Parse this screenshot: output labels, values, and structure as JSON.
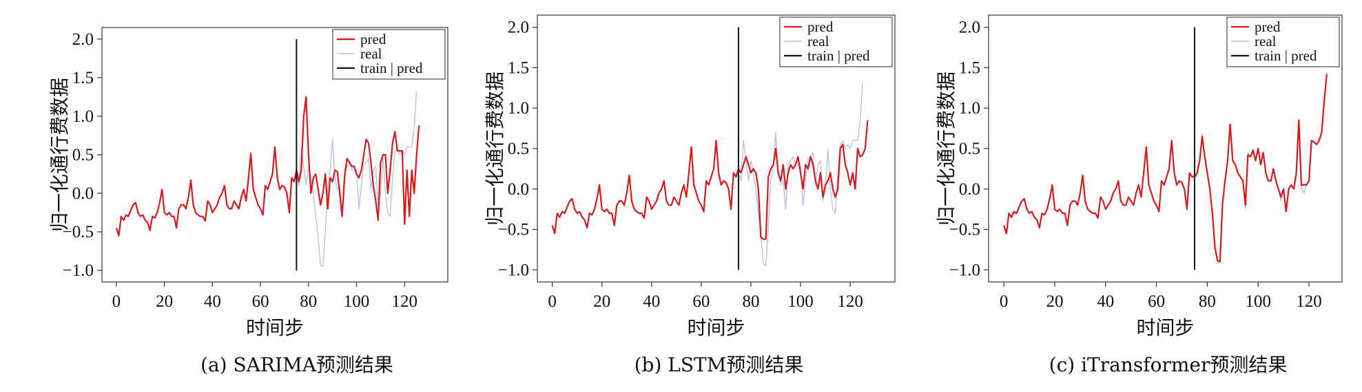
{
  "shared": {
    "ylabel": "归一化通行费数据",
    "xlabel": "时间步",
    "xticks": [
      0,
      20,
      40,
      60,
      80,
      100,
      120
    ],
    "yticks": [
      "2.0",
      "1.5",
      "1.0",
      "0.5",
      "0.0",
      "−0.5",
      "−1.0"
    ],
    "legend": [
      "pred",
      "real",
      "train | pred"
    ],
    "colors": {
      "pred": "#d7191c",
      "real": "#b9bfe6",
      "split": "#111111",
      "axis": "#333333"
    }
  },
  "chart_data": [
    {
      "type": "line",
      "caption": "(a)  SARIMA预测结果",
      "xlim": [
        -6,
        138
      ],
      "ylim": [
        -1.15,
        2.15
      ],
      "split_x": 75,
      "series": [
        {
          "name": "real",
          "x_start": 0,
          "values": [
            -0.45,
            -0.55,
            -0.3,
            -0.35,
            -0.28,
            -0.3,
            -0.22,
            -0.15,
            -0.12,
            -0.25,
            -0.3,
            -0.28,
            -0.35,
            -0.38,
            -0.48,
            -0.3,
            -0.32,
            -0.25,
            -0.12,
            0.05,
            -0.25,
            -0.28,
            -0.25,
            -0.3,
            -0.3,
            -0.45,
            -0.2,
            -0.15,
            -0.15,
            -0.2,
            -0.05,
            0.17,
            -0.15,
            -0.25,
            -0.28,
            -0.3,
            -0.3,
            -0.36,
            -0.1,
            -0.15,
            -0.25,
            -0.2,
            -0.15,
            -0.05,
            0.0,
            0.1,
            -0.15,
            -0.2,
            -0.2,
            -0.1,
            -0.15,
            -0.2,
            -0.05,
            0.05,
            -0.1,
            0.2,
            0.52,
            0.05,
            -0.05,
            -0.15,
            -0.2,
            -0.28,
            0.1,
            0.05,
            0.15,
            0.25,
            0.6,
            0.2,
            0.05,
            0.1,
            0.08,
            0.0,
            -0.25,
            0.2,
            0.15,
            0.2,
            0.1,
            0.6,
            0.35,
            0.1,
            0.35,
            0.2,
            0.0,
            -0.3,
            -0.55,
            -0.93,
            -0.95,
            -0.5,
            0.1,
            0.3,
            0.7,
            0.2,
            0.05,
            0.1,
            -0.25,
            0.3,
            0.35,
            0.4,
            0.3,
            0.35,
            0.28,
            -0.2,
            0.1,
            0.38,
            0.4,
            0.45,
            0.05,
            0.3,
            0.35,
            -0.15,
            0.0,
            0.5,
            0.0,
            -0.25,
            -0.3,
            0.2,
            0.55,
            0.6,
            0.5,
            0.55,
            0.5,
            0.6,
            0.6,
            0.6,
            0.85,
            1.32
          ]
        },
        {
          "name": "pred",
          "x_start": 0,
          "values": [
            -0.45,
            -0.55,
            -0.3,
            -0.35,
            -0.28,
            -0.3,
            -0.22,
            -0.15,
            -0.12,
            -0.25,
            -0.3,
            -0.28,
            -0.35,
            -0.38,
            -0.48,
            -0.3,
            -0.32,
            -0.25,
            -0.12,
            0.05,
            -0.25,
            -0.28,
            -0.25,
            -0.3,
            -0.3,
            -0.45,
            -0.2,
            -0.15,
            -0.15,
            -0.2,
            -0.05,
            0.17,
            -0.15,
            -0.25,
            -0.28,
            -0.3,
            -0.3,
            -0.36,
            -0.1,
            -0.15,
            -0.25,
            -0.2,
            -0.15,
            -0.05,
            0.0,
            0.1,
            -0.15,
            -0.2,
            -0.2,
            -0.1,
            -0.15,
            -0.2,
            -0.05,
            0.05,
            -0.1,
            0.2,
            0.52,
            0.05,
            -0.05,
            -0.15,
            -0.2,
            -0.28,
            0.1,
            0.05,
            0.15,
            0.25,
            0.6,
            0.2,
            0.05,
            0.1,
            0.08,
            0.0,
            -0.25,
            0.2,
            0.15,
            0.3,
            0.15,
            0.3,
            1.0,
            1.25,
            0.5,
            0.0,
            0.2,
            0.25,
            0.05,
            -0.15,
            0.0,
            0.25,
            -0.2,
            0.2,
            0.15,
            0.3,
            0.28,
            0.0,
            -0.3,
            0.2,
            0.45,
            0.4,
            0.35,
            0.35,
            0.25,
            0.2,
            0.3,
            0.5,
            0.7,
            0.65,
            0.4,
            0.1,
            -0.1,
            -0.35,
            0.4,
            0.5,
            0.5,
            0.0,
            0.3,
            0.65,
            0.8,
            0.55,
            0.55,
            0.55,
            -0.4,
            0.3,
            -0.3,
            0.3,
            0.0,
            0.5,
            0.88
          ]
        }
      ]
    },
    {
      "type": "line",
      "caption": "(b) LSTM预测结果",
      "xlim": [
        -6,
        138
      ],
      "ylim": [
        -1.15,
        2.15
      ],
      "split_x": 75,
      "series": [
        {
          "name": "real",
          "x_start": 0,
          "values": [
            -0.45,
            -0.55,
            -0.3,
            -0.35,
            -0.28,
            -0.3,
            -0.22,
            -0.15,
            -0.12,
            -0.25,
            -0.3,
            -0.28,
            -0.35,
            -0.38,
            -0.48,
            -0.3,
            -0.32,
            -0.25,
            -0.12,
            0.05,
            -0.25,
            -0.28,
            -0.25,
            -0.3,
            -0.3,
            -0.45,
            -0.2,
            -0.15,
            -0.15,
            -0.2,
            -0.05,
            0.17,
            -0.15,
            -0.25,
            -0.28,
            -0.3,
            -0.3,
            -0.36,
            -0.1,
            -0.15,
            -0.25,
            -0.2,
            -0.15,
            -0.05,
            0.0,
            0.1,
            -0.15,
            -0.2,
            -0.2,
            -0.1,
            -0.15,
            -0.2,
            -0.05,
            0.05,
            -0.1,
            0.2,
            0.52,
            0.05,
            -0.05,
            -0.15,
            -0.2,
            -0.28,
            0.1,
            0.05,
            0.15,
            0.25,
            0.6,
            0.2,
            0.05,
            0.1,
            0.08,
            0.0,
            -0.25,
            0.2,
            0.15,
            0.2,
            0.1,
            0.6,
            0.35,
            0.1,
            0.35,
            0.2,
            0.0,
            -0.3,
            -0.55,
            -0.93,
            -0.95,
            -0.5,
            0.1,
            0.3,
            0.7,
            0.2,
            0.05,
            0.1,
            -0.25,
            0.3,
            0.35,
            0.4,
            0.3,
            0.35,
            0.28,
            -0.2,
            0.1,
            0.38,
            0.4,
            0.45,
            0.05,
            0.3,
            0.35,
            -0.15,
            0.0,
            0.5,
            0.0,
            -0.25,
            -0.3,
            0.2,
            0.55,
            0.6,
            0.5,
            0.55,
            0.5,
            0.6,
            0.6,
            0.6,
            0.85,
            1.32
          ]
        },
        {
          "name": "pred",
          "x_start": 0,
          "values": [
            -0.45,
            -0.55,
            -0.3,
            -0.35,
            -0.28,
            -0.3,
            -0.22,
            -0.15,
            -0.12,
            -0.25,
            -0.3,
            -0.28,
            -0.35,
            -0.38,
            -0.48,
            -0.3,
            -0.32,
            -0.25,
            -0.12,
            0.05,
            -0.25,
            -0.28,
            -0.25,
            -0.3,
            -0.3,
            -0.45,
            -0.2,
            -0.15,
            -0.15,
            -0.2,
            -0.05,
            0.17,
            -0.15,
            -0.25,
            -0.28,
            -0.3,
            -0.3,
            -0.36,
            -0.1,
            -0.15,
            -0.25,
            -0.2,
            -0.15,
            -0.05,
            0.0,
            0.1,
            -0.15,
            -0.2,
            -0.2,
            -0.1,
            -0.15,
            -0.2,
            -0.05,
            0.05,
            -0.1,
            0.2,
            0.52,
            0.05,
            -0.05,
            -0.15,
            -0.2,
            -0.28,
            0.1,
            0.05,
            0.15,
            0.25,
            0.6,
            0.2,
            0.05,
            0.1,
            0.08,
            0.0,
            -0.25,
            0.2,
            0.15,
            0.25,
            0.2,
            0.3,
            0.4,
            0.3,
            0.2,
            0.25,
            0.2,
            0.0,
            -0.6,
            -0.62,
            -0.62,
            0.15,
            0.25,
            0.3,
            0.5,
            0.2,
            0.1,
            0.3,
            0.0,
            0.2,
            0.3,
            0.25,
            0.3,
            0.4,
            0.2,
            0.0,
            0.3,
            0.25,
            0.4,
            0.3,
            0.1,
            0.0,
            0.2,
            -0.1,
            0.05,
            0.1,
            0.2,
            0.0,
            -0.1,
            0.0,
            0.5,
            0.55,
            0.3,
            0.2,
            0.05,
            0.2,
            0.0,
            0.5,
            0.4,
            0.42,
            0.5,
            0.85
          ]
        }
      ]
    },
    {
      "type": "line",
      "caption": "(c) iTransformer预测结果",
      "xlim": [
        -6,
        133
      ],
      "ylim": [
        -1.15,
        2.15
      ],
      "split_x": 75,
      "series": [
        {
          "name": "real",
          "x_start": 0,
          "values": [
            -0.45,
            -0.55,
            -0.3,
            -0.35,
            -0.28,
            -0.3,
            -0.22,
            -0.15,
            -0.12,
            -0.25,
            -0.3,
            -0.28,
            -0.35,
            -0.38,
            -0.48,
            -0.3,
            -0.32,
            -0.25,
            -0.12,
            0.05,
            -0.25,
            -0.28,
            -0.25,
            -0.3,
            -0.3,
            -0.45,
            -0.2,
            -0.15,
            -0.15,
            -0.2,
            -0.05,
            0.17,
            -0.15,
            -0.25,
            -0.28,
            -0.3,
            -0.3,
            -0.36,
            -0.1,
            -0.15,
            -0.25,
            -0.2,
            -0.15,
            -0.05,
            0.0,
            0.1,
            -0.15,
            -0.2,
            -0.2,
            -0.1,
            -0.15,
            -0.2,
            -0.05,
            0.05,
            -0.1,
            0.2,
            0.52,
            0.05,
            -0.05,
            -0.15,
            -0.2,
            -0.28,
            0.1,
            0.05,
            0.15,
            0.25,
            0.6,
            0.2,
            0.05,
            0.1,
            0.08,
            0.0,
            -0.25,
            0.2,
            0.15,
            0.18,
            0.15,
            0.35,
            0.68,
            0.4,
            0.2,
            0.0,
            -0.35,
            -0.75,
            -0.92,
            -0.9,
            -0.2,
            0.1,
            0.35,
            0.78,
            0.35,
            0.3,
            0.2,
            0.15,
            0.1,
            -0.25,
            0.45,
            0.4,
            0.45,
            0.35,
            0.5,
            0.3,
            0.45,
            0.2,
            0.1,
            0.1,
            0.25,
            0.1,
            0.0,
            -0.15,
            0.0,
            -0.25,
            0.0,
            0.05,
            0.0,
            0.2,
            0.85,
            0.0,
            -0.05,
            0.05,
            0.1,
            0.6,
            0.58,
            0.55,
            0.6,
            0.7,
            1.1,
            1.45
          ]
        },
        {
          "name": "pred",
          "x_start": 0,
          "values": [
            -0.45,
            -0.55,
            -0.3,
            -0.35,
            -0.28,
            -0.3,
            -0.22,
            -0.15,
            -0.12,
            -0.25,
            -0.3,
            -0.28,
            -0.35,
            -0.38,
            -0.48,
            -0.3,
            -0.32,
            -0.25,
            -0.12,
            0.05,
            -0.25,
            -0.28,
            -0.25,
            -0.3,
            -0.3,
            -0.45,
            -0.2,
            -0.15,
            -0.15,
            -0.2,
            -0.05,
            0.17,
            -0.15,
            -0.25,
            -0.28,
            -0.3,
            -0.3,
            -0.36,
            -0.1,
            -0.15,
            -0.25,
            -0.2,
            -0.15,
            -0.05,
            0.0,
            0.1,
            -0.15,
            -0.2,
            -0.2,
            -0.1,
            -0.15,
            -0.2,
            -0.05,
            0.05,
            -0.1,
            0.2,
            0.52,
            0.05,
            -0.05,
            -0.15,
            -0.2,
            -0.28,
            0.1,
            0.05,
            0.15,
            0.25,
            0.6,
            0.2,
            0.05,
            0.1,
            0.08,
            0.0,
            -0.25,
            0.2,
            0.15,
            0.15,
            0.2,
            0.35,
            0.65,
            0.4,
            0.2,
            0.0,
            -0.3,
            -0.72,
            -0.88,
            -0.9,
            -0.18,
            0.1,
            0.35,
            0.8,
            0.35,
            0.3,
            0.2,
            0.15,
            0.1,
            -0.2,
            0.42,
            0.4,
            0.48,
            0.35,
            0.5,
            0.3,
            0.45,
            0.2,
            0.1,
            0.1,
            0.25,
            0.1,
            0.0,
            -0.1,
            0.0,
            -0.28,
            0.0,
            0.05,
            0.0,
            0.2,
            0.85,
            0.05,
            0.05,
            0.05,
            0.1,
            0.6,
            0.58,
            0.55,
            0.6,
            0.7,
            1.1,
            1.42
          ]
        }
      ]
    }
  ]
}
